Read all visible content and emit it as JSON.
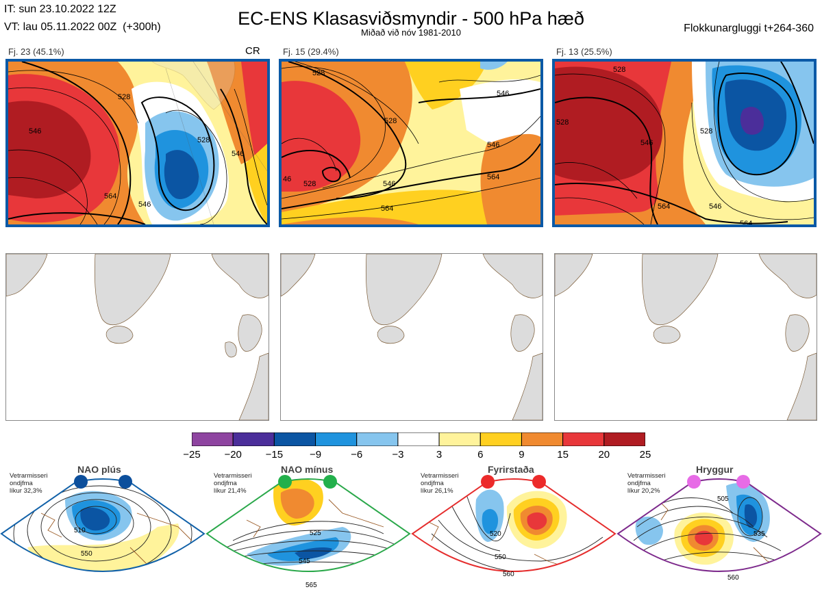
{
  "header": {
    "it_line": "IT: sun 23.10.2022 12Z",
    "vt_line": "VT: lau 05.11.2022 00Z  (+300h)",
    "title": "EC-ENS Klasasviðsmyndir - 500 hPa hæð",
    "subtitle": "Miðað við nóv 1981-2010",
    "window": "Flokkunargluggi t+264-360"
  },
  "clusters": [
    {
      "label": "Fj. 23 (45.1%)",
      "tag": "CR",
      "contours": [
        "528",
        "546",
        "564",
        "528",
        "546",
        "546"
      ]
    },
    {
      "label": "Fj. 15 (29.4%)",
      "tag": "",
      "contours": [
        "528",
        "528",
        "546",
        "546",
        "564",
        "564",
        "528",
        "46",
        "546"
      ]
    },
    {
      "label": "Fj. 13 (25.5%)",
      "tag": "",
      "contours": [
        "528",
        "528",
        "546",
        "564",
        "546",
        "564",
        "528"
      ]
    }
  ],
  "colorbar": {
    "colors": [
      "#8e44a0",
      "#4b2e9a",
      "#0b55a3",
      "#1f93de",
      "#86c5ee",
      "#ffffff",
      "#fff39b",
      "#ffd020",
      "#f08a30",
      "#e8373a",
      "#b01c22"
    ],
    "ticks": [
      "−25",
      "−20",
      "−15",
      "−9",
      "−6",
      "−3",
      "3",
      "6",
      "9",
      "15",
      "20",
      "25"
    ]
  },
  "regimes": [
    {
      "name": "NAO plús",
      "prob": "Vetrarmisseri\nondjfma\nlíkur 32,3%",
      "border": "#1161a8",
      "dot": "#0c4f9c",
      "contours": [
        "510",
        "550"
      ]
    },
    {
      "name": "NAO mínus",
      "prob": "Vetrarmisseri\nondjfma\nlíkur 21,4%",
      "border": "#2aa84a",
      "dot": "#22b04b",
      "contours": [
        "525",
        "545",
        "565"
      ]
    },
    {
      "name": "Fyrirstaða",
      "prob": "Vetrarmisseri\nondjfma\nlíkur 26,1%",
      "border": "#e52d2d",
      "dot": "#ec2a2a",
      "contours": [
        "520",
        "550",
        "560"
      ]
    },
    {
      "name": "Hryggur",
      "prob": "Vetrarmisseri\nondjfma\nlíkur 20,2%",
      "border": "#7d2a8c",
      "dot": "#e76be6",
      "contours": [
        "505",
        "535",
        "560"
      ]
    }
  ]
}
